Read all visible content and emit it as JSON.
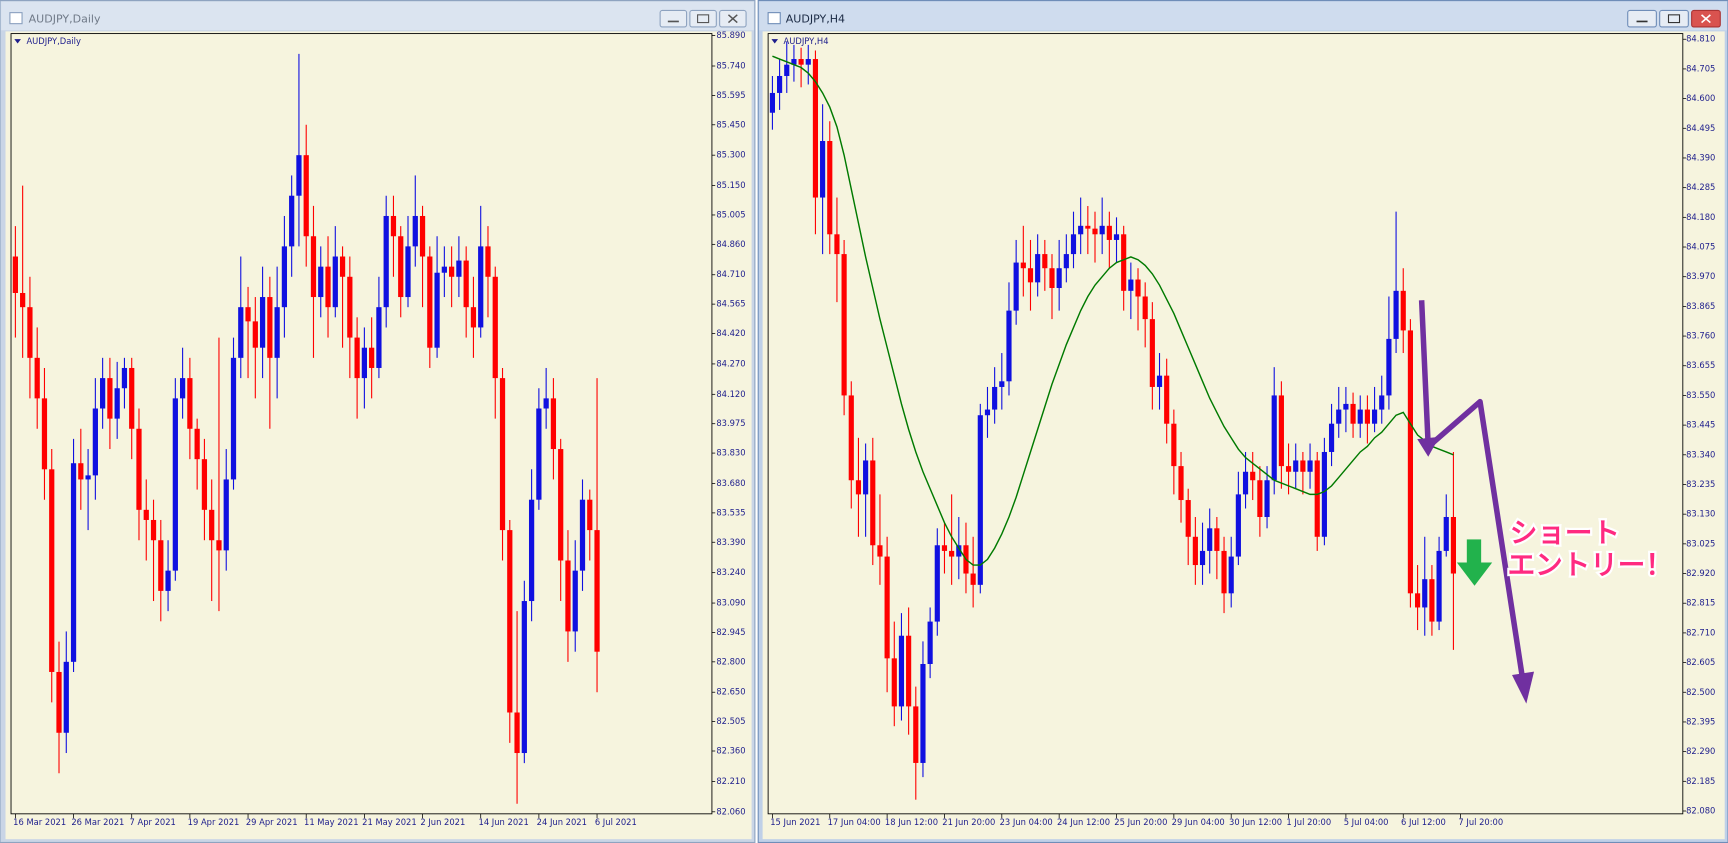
{
  "chart_data": [
    {
      "type": "candlestick",
      "title": "AUDJPY,Daily",
      "up_color": "#1010e0",
      "down_color": "#ff0000",
      "xlim": [
        -0.6,
        95.8
      ],
      "ylim": [
        82.05,
        85.9
      ],
      "xticks": [
        {
          "value": 0,
          "label": "16 Mar 2021"
        },
        {
          "value": 8,
          "label": "26 Mar 2021"
        },
        {
          "value": 16,
          "label": "7 Apr 2021"
        },
        {
          "value": 24,
          "label": "19 Apr 2021"
        },
        {
          "value": 32,
          "label": "29 Apr 2021"
        },
        {
          "value": 40,
          "label": "11 May 2021"
        },
        {
          "value": 48,
          "label": "21 May 2021"
        },
        {
          "value": 56,
          "label": "2 Jun 2021"
        },
        {
          "value": 64,
          "label": "14 Jun 2021"
        },
        {
          "value": 72,
          "label": "24 Jun 2021"
        },
        {
          "value": 80,
          "label": "6 Jul 2021"
        }
      ],
      "yticks": [
        {
          "value": 85.89,
          "label": "85.890"
        },
        {
          "value": 85.74,
          "label": "85.740"
        },
        85.595,
        {
          "value": 85.45,
          "label": "85.450"
        },
        {
          "value": 85.3,
          "label": "85.300"
        },
        {
          "value": 85.15,
          "label": "85.150"
        },
        85.005,
        {
          "value": 84.86,
          "label": "84.860"
        },
        {
          "value": 84.71,
          "label": "84.710"
        },
        84.565,
        {
          "value": 84.42,
          "label": "84.420"
        },
        {
          "value": 84.27,
          "label": "84.270"
        },
        {
          "value": 84.12,
          "label": "84.120"
        },
        83.975,
        {
          "value": 83.83,
          "label": "83.830"
        },
        {
          "value": 83.68,
          "label": "83.680"
        },
        83.535,
        {
          "value": 83.39,
          "label": "83.390"
        },
        {
          "value": 83.24,
          "label": "83.240"
        },
        {
          "value": 83.09,
          "label": "83.090"
        },
        82.945,
        {
          "value": 82.8,
          "label": "82.800"
        },
        {
          "value": 82.65,
          "label": "82.650"
        },
        82.505,
        {
          "value": 82.36,
          "label": "82.360"
        },
        {
          "value": 82.21,
          "label": "82.210"
        },
        {
          "value": 82.06,
          "label": "82.060"
        }
      ],
      "open": [
        84.8,
        84.62,
        84.55,
        84.3,
        84.1,
        83.75,
        82.75,
        82.45,
        82.8,
        83.78,
        83.7,
        83.72,
        84.05,
        84.2,
        84.0,
        84.15,
        84.25,
        83.95,
        83.55,
        83.5,
        83.4,
        83.15,
        83.25,
        84.1,
        84.2,
        83.95,
        83.8,
        83.55,
        83.4,
        83.35,
        83.7,
        84.3,
        84.55,
        84.48,
        84.35,
        84.6,
        84.3,
        84.55,
        84.85,
        85.1,
        85.3,
        84.9,
        84.6,
        84.75,
        84.55,
        84.8,
        84.7,
        84.4,
        84.2,
        84.35,
        84.25,
        84.55,
        85.0,
        84.9,
        84.6,
        84.85,
        85.0,
        84.8,
        84.35,
        84.72,
        84.75,
        84.7,
        84.78,
        84.55,
        84.45,
        84.85,
        84.7,
        84.2,
        83.45,
        82.55,
        82.35,
        83.1,
        83.6,
        84.05,
        84.1,
        83.85,
        83.3,
        82.95,
        83.25,
        83.6,
        83.45
      ],
      "high": [
        84.95,
        85.15,
        84.7,
        84.45,
        84.25,
        83.85,
        82.9,
        82.95,
        83.9,
        83.95,
        83.85,
        84.2,
        84.3,
        84.3,
        84.28,
        84.3,
        84.3,
        84.05,
        83.7,
        83.6,
        83.5,
        83.4,
        84.2,
        84.35,
        84.3,
        84.0,
        83.9,
        83.7,
        84.4,
        83.85,
        84.4,
        84.8,
        84.65,
        84.6,
        84.75,
        84.7,
        84.75,
        85.0,
        85.2,
        85.8,
        85.45,
        85.05,
        84.85,
        84.9,
        84.95,
        84.85,
        84.8,
        84.5,
        84.45,
        84.5,
        84.7,
        85.1,
        85.1,
        84.95,
        85.0,
        85.2,
        85.05,
        84.85,
        84.9,
        84.85,
        84.85,
        84.9,
        84.85,
        84.7,
        85.05,
        84.95,
        84.75,
        84.25,
        83.5,
        83.05,
        83.2,
        83.75,
        84.15,
        84.25,
        84.2,
        83.9,
        83.45,
        83.4,
        83.7,
        83.65,
        84.2
      ],
      "low": [
        84.4,
        84.3,
        84.1,
        83.95,
        83.6,
        82.6,
        82.25,
        82.35,
        82.75,
        83.55,
        83.45,
        83.6,
        83.95,
        83.85,
        83.9,
        84.05,
        83.8,
        83.4,
        83.3,
        83.1,
        83.0,
        83.05,
        83.2,
        84.0,
        83.8,
        83.65,
        83.4,
        83.1,
        83.05,
        83.25,
        83.65,
        84.2,
        84.2,
        84.1,
        84.2,
        83.95,
        84.1,
        84.4,
        84.7,
        84.85,
        84.75,
        84.3,
        84.5,
        84.4,
        84.5,
        84.35,
        84.2,
        84.0,
        84.05,
        84.1,
        84.2,
        84.45,
        84.7,
        84.5,
        84.55,
        84.75,
        84.55,
        84.25,
        84.3,
        84.6,
        84.55,
        84.6,
        84.4,
        84.3,
        84.4,
        84.5,
        84.0,
        83.3,
        82.4,
        82.1,
        82.3,
        83.0,
        83.55,
        83.95,
        83.7,
        83.1,
        82.8,
        82.85,
        83.15,
        83.3,
        82.65
      ],
      "close": [
        84.62,
        84.55,
        84.3,
        84.1,
        83.75,
        82.75,
        82.45,
        82.8,
        83.78,
        83.7,
        83.72,
        84.05,
        84.2,
        84.0,
        84.15,
        84.25,
        83.95,
        83.55,
        83.5,
        83.4,
        83.15,
        83.25,
        84.1,
        84.2,
        83.95,
        83.8,
        83.55,
        83.4,
        83.35,
        83.7,
        84.3,
        84.55,
        84.48,
        84.35,
        84.6,
        84.3,
        84.55,
        84.85,
        85.1,
        85.3,
        84.9,
        84.6,
        84.75,
        84.55,
        84.8,
        84.7,
        84.4,
        84.2,
        84.35,
        84.25,
        84.55,
        85.0,
        84.9,
        84.6,
        84.85,
        85.0,
        84.8,
        84.35,
        84.72,
        84.75,
        84.7,
        84.78,
        84.55,
        84.45,
        84.85,
        84.7,
        84.2,
        83.45,
        82.55,
        82.35,
        83.1,
        83.6,
        84.05,
        84.1,
        83.85,
        83.3,
        82.95,
        83.25,
        83.6,
        83.45,
        82.85
      ]
    },
    {
      "type": "candlestick",
      "title": "AUDJPY,H4",
      "up_color": "#1010e0",
      "down_color": "#ff0000",
      "xlim": [
        -0.6,
        127
      ],
      "ylim": [
        82.07,
        84.83
      ],
      "xticks": [
        {
          "value": 0,
          "label": "15 Jun 2021"
        },
        {
          "value": 8,
          "label": "17 Jun 04:00"
        },
        {
          "value": 16,
          "label": "18 Jun 12:00"
        },
        {
          "value": 24,
          "label": "21 Jun 20:00"
        },
        {
          "value": 32,
          "label": "23 Jun 04:00"
        },
        {
          "value": 40,
          "label": "24 Jun 12:00"
        },
        {
          "value": 48,
          "label": "25 Jun 20:00"
        },
        {
          "value": 56,
          "label": "29 Jun 04:00"
        },
        {
          "value": 64,
          "label": "30 Jun 12:00"
        },
        {
          "value": 72,
          "label": "1 Jul 20:00"
        },
        {
          "value": 80,
          "label": "5 Jul 04:00"
        },
        {
          "value": 88,
          "label": "6 Jul 12:00"
        },
        {
          "value": 96,
          "label": "7 Jul 20:00"
        }
      ],
      "yticks": [
        {
          "value": 84.81,
          "label": "84.810"
        },
        84.705,
        {
          "value": 84.6,
          "label": "84.600"
        },
        84.495,
        {
          "value": 84.39,
          "label": "84.390"
        },
        84.285,
        {
          "value": 84.18,
          "label": "84.180"
        },
        84.075,
        {
          "value": 83.97,
          "label": "83.970"
        },
        83.865,
        {
          "value": 83.76,
          "label": "83.760"
        },
        83.655,
        {
          "value": 83.55,
          "label": "83.550"
        },
        83.445,
        {
          "value": 83.34,
          "label": "83.340"
        },
        83.235,
        {
          "value": 83.13,
          "label": "83.130"
        },
        83.025,
        {
          "value": 82.92,
          "label": "82.920"
        },
        82.815,
        {
          "value": 82.71,
          "label": "82.710"
        },
        82.605,
        {
          "value": 82.5,
          "label": "82.500"
        },
        82.395,
        {
          "value": 82.29,
          "label": "82.290"
        },
        82.185,
        {
          "value": 82.08,
          "label": "82.080"
        }
      ],
      "open": [
        84.55,
        84.62,
        84.68,
        84.72,
        84.74,
        84.72,
        84.74,
        84.25,
        84.45,
        84.12,
        84.05,
        83.55,
        83.25,
        83.2,
        83.32,
        83.02,
        82.98,
        82.62,
        82.45,
        82.7,
        82.45,
        82.25,
        82.6,
        82.75,
        83.02,
        83.0,
        82.98,
        83.02,
        82.92,
        82.88,
        83.48,
        83.5,
        83.58,
        83.6,
        83.85,
        84.02,
        84.0,
        83.95,
        84.05,
        84.0,
        83.93,
        84.0,
        84.05,
        84.12,
        84.15,
        84.14,
        84.12,
        84.15,
        84.1,
        84.12,
        83.92,
        83.96,
        83.9,
        83.82,
        83.58,
        83.62,
        83.45,
        83.3,
        83.18,
        83.05,
        82.95,
        83.0,
        83.08,
        83.0,
        82.85,
        82.98,
        83.2,
        83.28,
        83.25,
        83.12,
        83.25,
        83.55,
        83.3,
        83.28,
        83.32,
        83.28,
        83.32,
        83.05,
        83.35,
        83.45,
        83.5,
        83.52,
        83.45,
        83.5,
        83.45,
        83.5,
        83.55,
        83.75,
        83.92,
        83.78,
        82.85,
        82.8,
        82.9,
        82.75,
        83.0,
        83.12
      ],
      "high": [
        84.68,
        84.74,
        84.8,
        84.79,
        84.78,
        84.79,
        84.77,
        84.58,
        84.52,
        84.25,
        84.1,
        83.6,
        83.4,
        83.38,
        83.4,
        83.2,
        83.05,
        82.75,
        82.78,
        82.8,
        82.52,
        82.68,
        82.8,
        83.08,
        83.1,
        83.2,
        83.12,
        83.1,
        83.05,
        83.52,
        83.58,
        83.65,
        83.7,
        83.95,
        84.1,
        84.15,
        84.1,
        84.12,
        84.1,
        84.05,
        84.1,
        84.12,
        84.2,
        84.25,
        84.22,
        84.2,
        84.25,
        84.2,
        84.18,
        84.15,
        84.02,
        84.0,
        83.95,
        83.88,
        83.7,
        83.68,
        83.5,
        83.35,
        83.22,
        83.12,
        83.1,
        83.15,
        83.12,
        83.05,
        83.05,
        83.28,
        83.35,
        83.35,
        83.3,
        83.3,
        83.65,
        83.6,
        83.38,
        83.38,
        83.35,
        83.38,
        83.35,
        83.4,
        83.52,
        83.58,
        83.58,
        83.56,
        83.55,
        83.55,
        83.58,
        83.62,
        83.9,
        84.2,
        84.0,
        83.82,
        82.95,
        83.05,
        82.95,
        83.05,
        83.2,
        83.35
      ],
      "low": [
        84.49,
        84.56,
        84.62,
        84.66,
        84.64,
        84.65,
        84.12,
        84.05,
        84.05,
        83.88,
        83.48,
        83.15,
        83.05,
        83.05,
        82.95,
        82.88,
        82.5,
        82.38,
        82.4,
        82.35,
        82.12,
        82.2,
        82.55,
        82.7,
        82.92,
        82.88,
        82.9,
        82.85,
        82.8,
        82.85,
        83.4,
        83.45,
        83.5,
        83.55,
        83.8,
        83.9,
        83.85,
        83.9,
        83.92,
        83.82,
        83.85,
        83.95,
        84.0,
        84.05,
        84.05,
        84.02,
        84.05,
        84.0,
        84.02,
        83.85,
        83.82,
        83.78,
        83.72,
        83.5,
        83.5,
        83.38,
        83.2,
        83.1,
        82.95,
        82.88,
        82.88,
        82.92,
        82.9,
        82.78,
        82.8,
        82.95,
        83.15,
        83.18,
        83.05,
        83.08,
        83.2,
        83.22,
        83.2,
        83.22,
        83.2,
        83.22,
        83.0,
        83.02,
        83.3,
        83.4,
        83.42,
        83.4,
        83.4,
        83.38,
        83.42,
        83.45,
        83.5,
        83.7,
        83.7,
        82.8,
        82.72,
        82.7,
        82.7,
        82.72,
        82.98,
        82.65
      ],
      "close": [
        84.62,
        84.68,
        84.72,
        84.74,
        84.72,
        84.74,
        84.25,
        84.45,
        84.12,
        84.05,
        83.55,
        83.25,
        83.2,
        83.32,
        83.02,
        82.98,
        82.62,
        82.45,
        82.7,
        82.45,
        82.25,
        82.6,
        82.75,
        83.02,
        83.0,
        82.98,
        83.02,
        82.92,
        82.88,
        83.48,
        83.5,
        83.58,
        83.6,
        83.85,
        84.02,
        84.0,
        83.95,
        84.05,
        84.0,
        83.93,
        84.0,
        84.05,
        84.12,
        84.15,
        84.14,
        84.12,
        84.15,
        84.1,
        84.12,
        83.92,
        83.96,
        83.9,
        83.82,
        83.58,
        83.62,
        83.45,
        83.3,
        83.18,
        83.05,
        82.95,
        83.0,
        83.08,
        83.0,
        82.85,
        82.98,
        83.2,
        83.28,
        83.25,
        83.12,
        83.25,
        83.55,
        83.3,
        83.28,
        83.32,
        83.28,
        83.32,
        83.05,
        83.35,
        83.45,
        83.5,
        83.52,
        83.45,
        83.5,
        83.45,
        83.5,
        83.55,
        83.75,
        83.92,
        83.78,
        82.85,
        82.8,
        82.9,
        82.75,
        83.0,
        83.12,
        82.92
      ],
      "lines": [
        {
          "color": "#007a00",
          "values": [
            84.75,
            84.74,
            84.73,
            84.72,
            84.71,
            84.69,
            84.66,
            84.62,
            84.57,
            84.5,
            84.4,
            84.28,
            84.16,
            84.04,
            83.93,
            83.82,
            83.72,
            83.62,
            83.52,
            83.43,
            83.35,
            83.28,
            83.22,
            83.16,
            83.1,
            83.05,
            83.01,
            82.97,
            82.95,
            82.95,
            82.97,
            83.01,
            83.06,
            83.12,
            83.19,
            83.27,
            83.35,
            83.43,
            83.51,
            83.59,
            83.66,
            83.73,
            83.79,
            83.85,
            83.9,
            83.94,
            83.97,
            84.0,
            84.02,
            84.03,
            84.04,
            84.03,
            84.01,
            83.98,
            83.94,
            83.89,
            83.84,
            83.78,
            83.72,
            83.66,
            83.6,
            83.54,
            83.49,
            83.44,
            83.4,
            83.36,
            83.33,
            83.31,
            83.29,
            83.27,
            83.25,
            83.24,
            83.23,
            83.22,
            83.21,
            83.2,
            83.2,
            83.21,
            83.23,
            83.26,
            83.29,
            83.32,
            83.35,
            83.37,
            83.4,
            83.42,
            83.45,
            83.48,
            83.49,
            83.45,
            83.41,
            83.39,
            83.37,
            83.36,
            83.35,
            83.34
          ]
        }
      ],
      "annotations": [
        "ショート",
        "エントリー！"
      ]
    }
  ]
}
